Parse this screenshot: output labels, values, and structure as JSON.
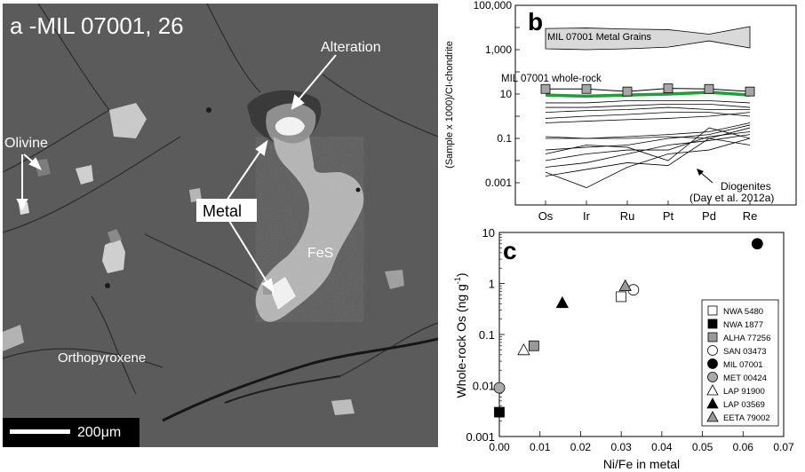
{
  "panel_a": {
    "title": "a -MIL 07001, 26",
    "labels": {
      "alteration": "Alteration",
      "olivine": "Olivine",
      "metal": "Metal",
      "fes": "FeS",
      "orthopyroxene": "Orthopyroxene"
    },
    "scale_bar": "200μm"
  },
  "panel_b": {
    "letter": "b",
    "ylabel": "(Sample x 1000)/CI-chondrite",
    "metal_label": "MIL 07001 Metal Grains",
    "wholerock_label": "MIL 07001 whole-rock",
    "diogenites_label_1": "Diogenites",
    "diogenites_label_2": "(Day et al. 2012a)",
    "yticks": [
      "100,000",
      "1,000",
      "10",
      "0.1",
      "0.001"
    ],
    "categories": [
      "Os",
      "Ir",
      "Ru",
      "Pt",
      "Pd",
      "Re"
    ]
  },
  "panel_c": {
    "letter": "c",
    "ylabel_main": "Whole-rock Os (ng g",
    "ylabel_sup": "-1",
    "ylabel_end": ")",
    "xlabel": "Ni/Fe in metal",
    "xticks": [
      "0.00",
      "0.01",
      "0.02",
      "0.03",
      "0.04",
      "0.05",
      "0.06",
      "0.07"
    ],
    "yticks": [
      "10",
      "1",
      "0.1",
      "0.01",
      "0.001"
    ]
  },
  "chart_data": [
    {
      "type": "line",
      "panel": "b",
      "categories": [
        "Os",
        "Ir",
        "Ru",
        "Pt",
        "Pd",
        "Re"
      ],
      "ylabel": "(Sample x 1000)/CI-chondrite",
      "yscale": "log",
      "ylim": [
        0.0001,
        100000
      ],
      "metal_band": {
        "name": "MIL 07001 Metal Grains",
        "upper": [
          9000,
          9500,
          8500,
          8000,
          5000,
          11000
        ],
        "lower": [
          1100,
          1000,
          1100,
          1300,
          2500,
          1200
        ],
        "color": "#d9d9d9"
      },
      "whole_rock": {
        "name": "MIL 07001 whole-rock",
        "values": [
          17,
          17,
          13,
          18,
          17,
          13
        ]
      },
      "whole_rock_line": [
        9,
        8,
        9,
        10,
        12,
        9
      ],
      "diogenites": [
        [
          4,
          4,
          5,
          5,
          5,
          4
        ],
        [
          2.5,
          2.5,
          3,
          3.5,
          3.5,
          2.5
        ],
        [
          1.5,
          1.8,
          2,
          2.5,
          2,
          2
        ],
        [
          0.8,
          1,
          1.2,
          1.5,
          1.5,
          1
        ],
        [
          0.5,
          0.6,
          0.7,
          0.8,
          1,
          1.5
        ],
        [
          0.12,
          0.1,
          0.12,
          0.15,
          0.2,
          0.5
        ],
        [
          0.1,
          0.1,
          0.1,
          0.12,
          0.1,
          0.3
        ],
        [
          0.03,
          0.04,
          0.05,
          0.1,
          0.15,
          0.4
        ],
        [
          0.01,
          0.02,
          0.03,
          0.03,
          0.12,
          0.2
        ],
        [
          0.005,
          0.008,
          0.02,
          0.05,
          0.08,
          0.15
        ],
        [
          0.003,
          0.0006,
          0.005,
          0.02,
          0.03,
          0.1
        ],
        [
          0.002,
          0.004,
          0.008,
          0.006,
          0.1,
          0.05
        ],
        [
          0.02,
          0.05,
          0.04,
          0.01,
          0.3,
          0.1
        ]
      ],
      "yticks": [
        100000,
        1000,
        10,
        0.1,
        0.001
      ]
    },
    {
      "type": "scatter",
      "panel": "c",
      "xlabel": "Ni/Fe in metal",
      "ylabel": "Whole-rock Os (ng g-1)",
      "yscale": "log",
      "xlim": [
        0,
        0.07
      ],
      "ylim": [
        0.001,
        10
      ],
      "legend_position": "right",
      "series": [
        {
          "name": "NWA 5480",
          "marker": "square",
          "fill": "#ffffff",
          "x": [
            0.03
          ],
          "y": [
            0.55
          ]
        },
        {
          "name": "NWA 1877",
          "marker": "square",
          "fill": "#000000",
          "x": [
            0.0
          ],
          "y": [
            0.003
          ]
        },
        {
          "name": "ALHA 77256",
          "marker": "square",
          "fill": "#999999",
          "x": [
            0.0085
          ],
          "y": [
            0.06
          ]
        },
        {
          "name": "SAN 03473",
          "marker": "circle",
          "fill": "#ffffff",
          "x": [
            0.033
          ],
          "y": [
            0.75
          ]
        },
        {
          "name": "MIL 07001",
          "marker": "circle",
          "fill": "#000000",
          "x": [
            0.0635
          ],
          "y": [
            6.0
          ]
        },
        {
          "name": "MET 00424",
          "marker": "circle",
          "fill": "#aaaaaa",
          "x": [
            0.0
          ],
          "y": [
            0.009
          ]
        },
        {
          "name": "LAP 91900",
          "marker": "triangle",
          "fill": "#ffffff",
          "x": [
            0.006
          ],
          "y": [
            0.05
          ]
        },
        {
          "name": "LAP 03569",
          "marker": "triangle",
          "fill": "#000000",
          "x": [
            0.0155
          ],
          "y": [
            0.42
          ]
        },
        {
          "name": "EETA 79002",
          "marker": "triangle",
          "fill": "#999999",
          "x": [
            0.031
          ],
          "y": [
            0.9
          ]
        }
      ]
    }
  ]
}
